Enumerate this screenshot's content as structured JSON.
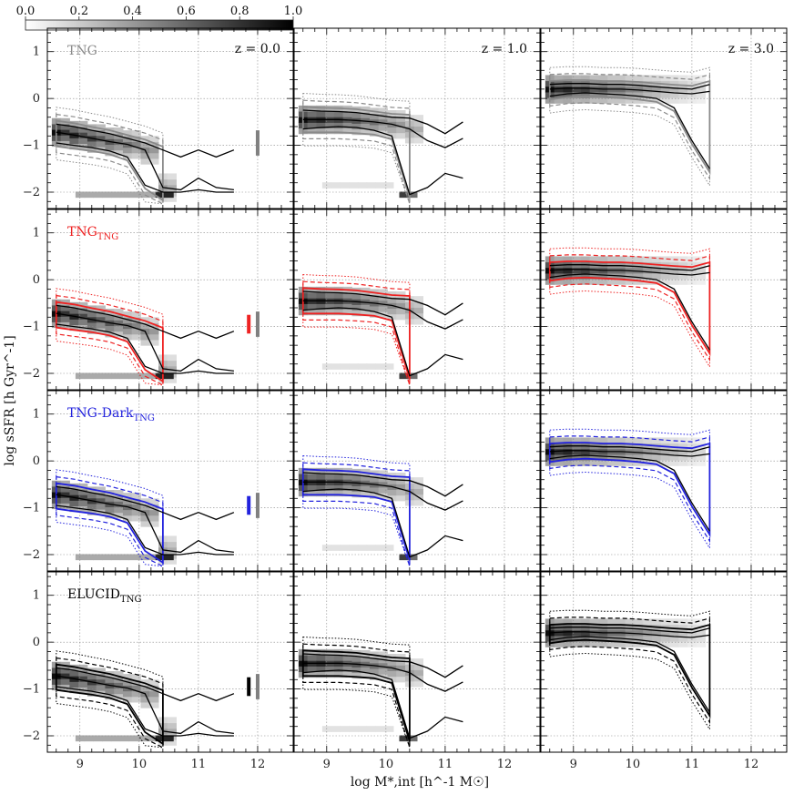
{
  "chart_data": {
    "type": "heatmap",
    "description_free": true,
    "xlabel": "log M*,int [h^-1 M☉]",
    "ylabel": "log sSFR [h Gyr^-1]",
    "xlim": [
      8.45,
      12.6
    ],
    "ylim": [
      -2.35,
      1.5
    ],
    "xticks": [
      9,
      10,
      11,
      12
    ],
    "yticks": [
      -2,
      -1,
      0,
      1
    ],
    "xtick_labels": [
      "9",
      "10",
      "11",
      "12"
    ],
    "ytick_labels": [
      "−2",
      "−1",
      "0",
      "1"
    ],
    "colorbar": {
      "min": 0.0,
      "max": 1.0,
      "tick_labels": [
        "0.0",
        "0.2",
        "0.4",
        "0.6",
        "0.8",
        "1.0"
      ],
      "ticks": [
        0.0,
        0.2,
        0.4,
        0.6,
        0.8,
        1.0
      ]
    },
    "columns": [
      {
        "z_label": "z = 0.0"
      },
      {
        "z_label": "z = 1.0"
      },
      {
        "z_label": "z = 3.0"
      }
    ],
    "rows": [
      {
        "name": "TNG",
        "label_main": "TNG",
        "label_sub": "",
        "color": "#8a8a8a",
        "errbar_color": "#8a8a8a"
      },
      {
        "name": "TNG_TNG",
        "label_main": "TNG",
        "label_sub": "TNG",
        "color": "#ee2222",
        "errbar_color": "#ee2222"
      },
      {
        "name": "TNG-Dark_TNG",
        "label_main": "TNG-Dark",
        "label_sub": "TNG",
        "color": "#2222dd",
        "errbar_color": "#2222dd"
      },
      {
        "name": "ELUCID_TNG",
        "label_main": "ELUCID",
        "label_sub": "TNG",
        "color": "#000000",
        "errbar_color": "#000000"
      }
    ],
    "errbars": {
      "x_colored": 11.85,
      "x_gray": 12.0,
      "center": -0.95,
      "half_range": 0.2
    },
    "median_lines": {
      "z0": {
        "x": [
          8.6,
          8.9,
          9.2,
          9.5,
          9.8,
          10.1,
          10.4,
          10.7,
          11.0,
          11.3,
          11.6
        ],
        "median": [
          -0.72,
          -0.78,
          -0.85,
          -0.92,
          -0.98,
          -1.1,
          -1.9,
          -1.95,
          -1.7,
          -1.9,
          -1.95
        ],
        "p16": [
          -0.95,
          -1.0,
          -1.05,
          -1.12,
          -1.25,
          -1.85,
          -2.0,
          -2.0,
          -1.95,
          -2.0,
          -2.0
        ],
        "p84": [
          -0.55,
          -0.6,
          -0.68,
          -0.75,
          -0.85,
          -0.95,
          -1.1,
          -1.25,
          -1.1,
          -1.25,
          -1.1
        ]
      },
      "z1": {
        "x": [
          8.6,
          8.9,
          9.2,
          9.5,
          9.8,
          10.1,
          10.4,
          10.7,
          11.0,
          11.3
        ],
        "median": [
          -0.45,
          -0.45,
          -0.45,
          -0.47,
          -0.5,
          -0.55,
          -0.65,
          -0.9,
          -1.05,
          -0.85
        ],
        "p16": [
          -0.65,
          -0.62,
          -0.6,
          -0.62,
          -0.68,
          -0.8,
          -2.05,
          -1.9,
          -1.6,
          -1.7
        ],
        "p84": [
          -0.25,
          -0.27,
          -0.28,
          -0.3,
          -0.35,
          -0.4,
          -0.42,
          -0.55,
          -0.75,
          -0.5
        ]
      },
      "z3": {
        "x": [
          8.6,
          8.9,
          9.2,
          9.5,
          9.8,
          10.1,
          10.4,
          10.7,
          11.0,
          11.3
        ],
        "median": [
          0.2,
          0.22,
          0.22,
          0.2,
          0.2,
          0.18,
          0.15,
          0.12,
          0.1,
          0.15
        ],
        "p16": [
          0.05,
          0.1,
          0.12,
          0.1,
          0.08,
          0.05,
          0.0,
          -0.2,
          -0.9,
          -1.5
        ],
        "p84": [
          0.3,
          0.32,
          0.32,
          0.3,
          0.3,
          0.28,
          0.25,
          0.22,
          0.2,
          0.3
        ]
      }
    }
  }
}
